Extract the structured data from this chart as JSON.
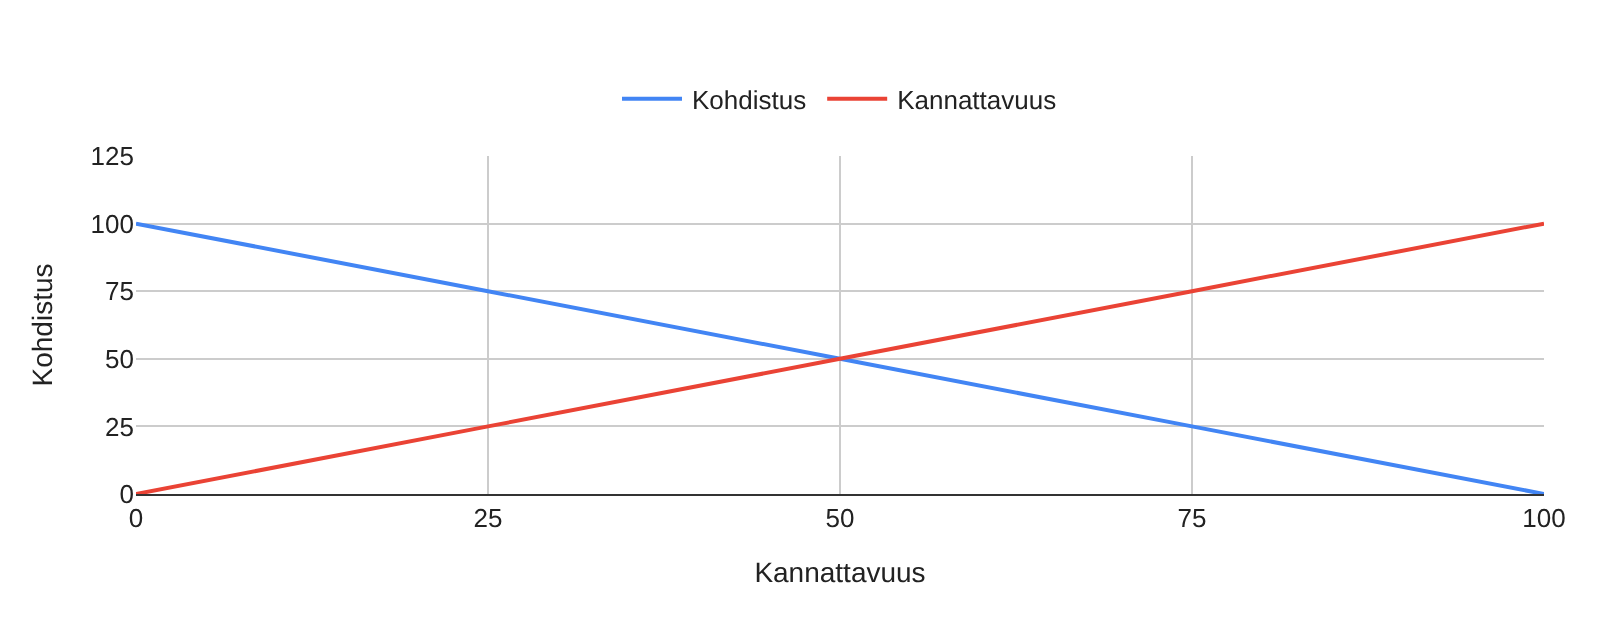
{
  "chart_data": {
    "type": "line",
    "xlabel": "Kannattavuus",
    "ylabel": "Kohdistus",
    "x": [
      0,
      25,
      50,
      75,
      100
    ],
    "series": [
      {
        "name": "Kohdistus",
        "color": "#4285f4",
        "values": [
          100,
          75,
          50,
          25,
          0
        ]
      },
      {
        "name": "Kannattavuus",
        "color": "#ea4335",
        "values": [
          0,
          25,
          50,
          75,
          100
        ]
      }
    ],
    "xlim": [
      0,
      100
    ],
    "xticks": [
      0,
      25,
      50,
      75,
      100
    ],
    "ylim": [
      0,
      125
    ],
    "yticks": [
      0,
      25,
      50,
      75,
      100,
      125
    ],
    "grid": true,
    "legend": "top",
    "marker": "none",
    "line_style": "solid"
  }
}
